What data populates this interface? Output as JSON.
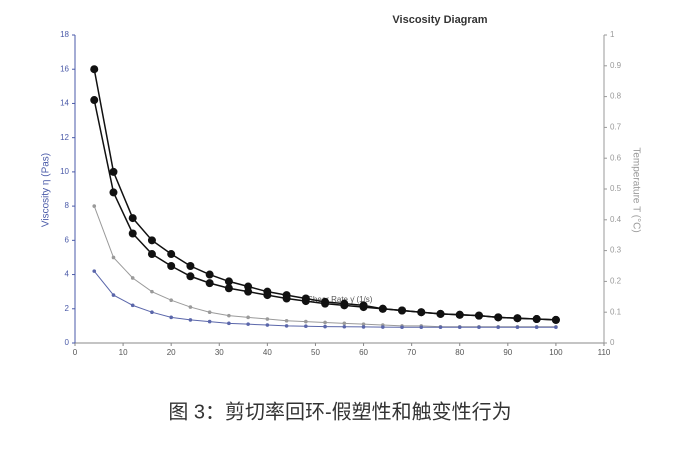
{
  "chart_data": {
    "type": "line",
    "title": "Viscosity Diagram",
    "xlabel": "Shear Rate γ̇ (1/s)",
    "ylabel": "Viscosity η (Pas)",
    "y2label": "Temperature T (°C)",
    "caption": "图 3：剪切率回环-假塑性和触变性行为",
    "x": [
      4,
      8,
      12,
      16,
      20,
      24,
      28,
      32,
      36,
      40,
      44,
      48,
      52,
      56,
      60,
      64,
      68,
      72,
      76,
      80,
      84,
      88,
      92,
      96,
      100
    ],
    "series": [
      {
        "color": "#111111",
        "values": [
          16.0,
          10.0,
          7.3,
          6.0,
          5.2,
          4.5,
          4.0,
          3.6,
          3.3,
          3.0,
          2.8,
          2.6,
          2.4,
          2.3,
          2.2,
          2.0,
          1.9,
          1.8,
          1.7,
          1.65,
          1.6,
          1.5,
          1.45,
          1.4,
          1.35
        ]
      },
      {
        "color": "#111111",
        "values": [
          14.2,
          8.8,
          6.4,
          5.2,
          4.5,
          3.9,
          3.5,
          3.2,
          3.0,
          2.8,
          2.6,
          2.45,
          2.3,
          2.2,
          2.1,
          2.0,
          1.9,
          1.8,
          1.7,
          1.65,
          1.6,
          1.5,
          1.45,
          1.4,
          1.35
        ]
      },
      {
        "color": "#9a9a9a",
        "values": [
          8.0,
          5.0,
          3.8,
          3.0,
          2.5,
          2.1,
          1.8,
          1.6,
          1.5,
          1.4,
          1.3,
          1.25,
          1.2,
          1.15,
          1.1,
          1.05,
          1.0,
          1.0,
          0.95,
          0.95,
          0.95,
          0.95,
          0.95,
          0.95,
          0.95
        ]
      },
      {
        "color": "#5a66aa",
        "values": [
          4.2,
          2.8,
          2.2,
          1.8,
          1.5,
          1.35,
          1.25,
          1.15,
          1.1,
          1.05,
          1.0,
          0.98,
          0.96,
          0.95,
          0.94,
          0.93,
          0.92,
          0.92,
          0.92,
          0.92,
          0.92,
          0.92,
          0.92,
          0.92,
          0.92
        ]
      }
    ],
    "xlim": [
      0,
      110
    ],
    "xticks": [
      0,
      10,
      20,
      30,
      40,
      50,
      60,
      70,
      80,
      90,
      100,
      110
    ],
    "ylim": [
      0,
      18
    ],
    "yticks": [
      0,
      2,
      4,
      6,
      8,
      10,
      12,
      14,
      16,
      18
    ],
    "y2lim": [
      0,
      1
    ],
    "y2ticks": [
      0,
      0.1,
      0.2,
      0.3,
      0.4,
      0.5,
      0.6,
      0.7,
      0.8,
      0.9,
      1
    ],
    "yaxis_color": "#4a5aa8",
    "y2axis_color": "#999999"
  }
}
